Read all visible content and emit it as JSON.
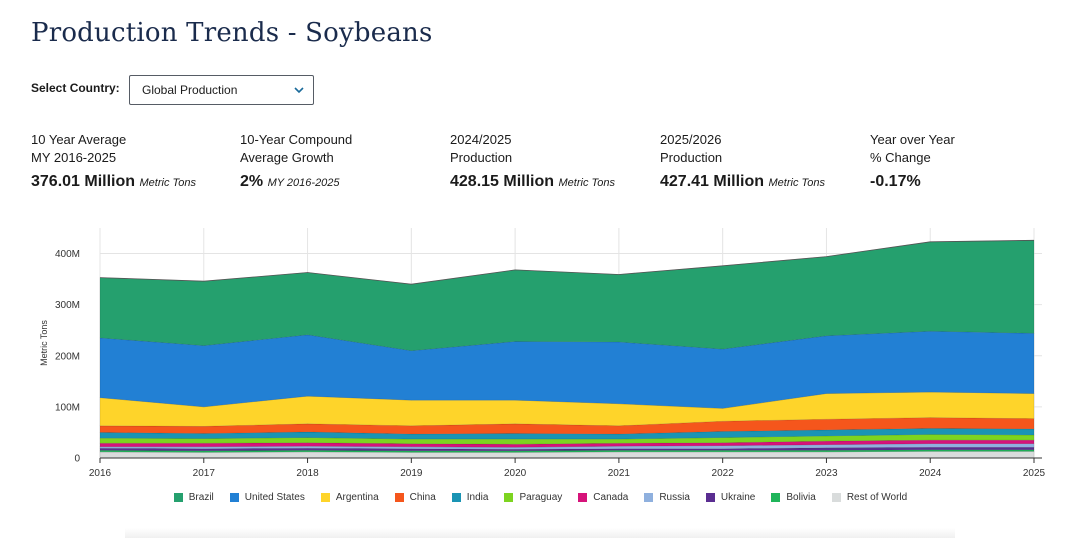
{
  "page": {
    "title": "Production Trends - Soybeans"
  },
  "filter": {
    "label": "Select Country:",
    "selected": "Global Production"
  },
  "stats": [
    {
      "label1": "10 Year Average",
      "label2": "MY 2016-2025",
      "value": "376.01 Million",
      "unit": "Metric Tons"
    },
    {
      "label1": "10-Year Compound",
      "label2": "Average Growth",
      "value": "2%",
      "unit": "MY 2016-2025"
    },
    {
      "label1": "2024/2025",
      "label2": "Production",
      "value": "428.15 Million",
      "unit": "Metric Tons"
    },
    {
      "label1": "2025/2026",
      "label2": "Production",
      "value": "427.41 Million",
      "unit": "Metric Tons"
    },
    {
      "label1": "Year over Year",
      "label2": "% Change",
      "value": "-0.17%",
      "unit": ""
    }
  ],
  "chart_data": {
    "type": "area",
    "stacked": true,
    "ylabel": "Metric Tons",
    "xlabel": "",
    "ylim": [
      0,
      450
    ],
    "y_ticks": [
      {
        "v": 0,
        "label": "0"
      },
      {
        "v": 100,
        "label": "100M"
      },
      {
        "v": 200,
        "label": "200M"
      },
      {
        "v": 300,
        "label": "300M"
      },
      {
        "v": 400,
        "label": "400M"
      }
    ],
    "x": [
      "2016",
      "2017",
      "2018",
      "2019",
      "2020",
      "2021",
      "2022",
      "2023",
      "2024",
      "2025"
    ],
    "grid": true,
    "legend_position": "bottom",
    "series": [
      {
        "name": "Rest of World",
        "color": "#d9dcdc",
        "values": [
          12,
          11,
          12,
          11,
          11,
          12,
          12,
          12,
          13,
          13
        ]
      },
      {
        "name": "Bolivia",
        "color": "#1fb55a",
        "values": [
          3,
          3,
          3,
          3,
          3,
          3,
          3,
          3,
          3,
          3
        ]
      },
      {
        "name": "Ukraine",
        "color": "#5a2d91",
        "values": [
          4,
          4,
          4,
          4,
          3,
          3,
          3,
          5,
          5,
          5
        ]
      },
      {
        "name": "Russia",
        "color": "#8fb0de",
        "values": [
          3,
          4,
          4,
          4,
          4,
          5,
          6,
          6,
          7,
          7
        ]
      },
      {
        "name": "Canada",
        "color": "#d6137a",
        "values": [
          7,
          7,
          7,
          6,
          6,
          6,
          6,
          7,
          7,
          7
        ]
      },
      {
        "name": "Paraguay",
        "color": "#7dd420",
        "values": [
          10,
          9,
          10,
          9,
          10,
          8,
          10,
          10,
          11,
          10
        ]
      },
      {
        "name": "India",
        "color": "#1a94b4",
        "values": [
          11,
          10,
          11,
          10,
          11,
          10,
          12,
          12,
          12,
          12
        ]
      },
      {
        "name": "China",
        "color": "#f5561c",
        "values": [
          13,
          14,
          16,
          16,
          19,
          16,
          20,
          21,
          21,
          20
        ]
      },
      {
        "name": "Argentina",
        "color": "#fed42a",
        "values": [
          55,
          38,
          54,
          50,
          46,
          43,
          25,
          50,
          50,
          49
        ]
      },
      {
        "name": "United States",
        "color": "#2280d4",
        "values": [
          117,
          120,
          120,
          97,
          115,
          121,
          116,
          113,
          119,
          118
        ]
      },
      {
        "name": "Brazil",
        "color": "#25a06e",
        "values": [
          118,
          126,
          122,
          130,
          140,
          132,
          163,
          155,
          175,
          182
        ]
      }
    ],
    "legend_order": [
      "Brazil",
      "United States",
      "Argentina",
      "China",
      "India",
      "Paraguay",
      "Canada",
      "Russia",
      "Ukraine",
      "Bolivia",
      "Rest of World"
    ]
  }
}
